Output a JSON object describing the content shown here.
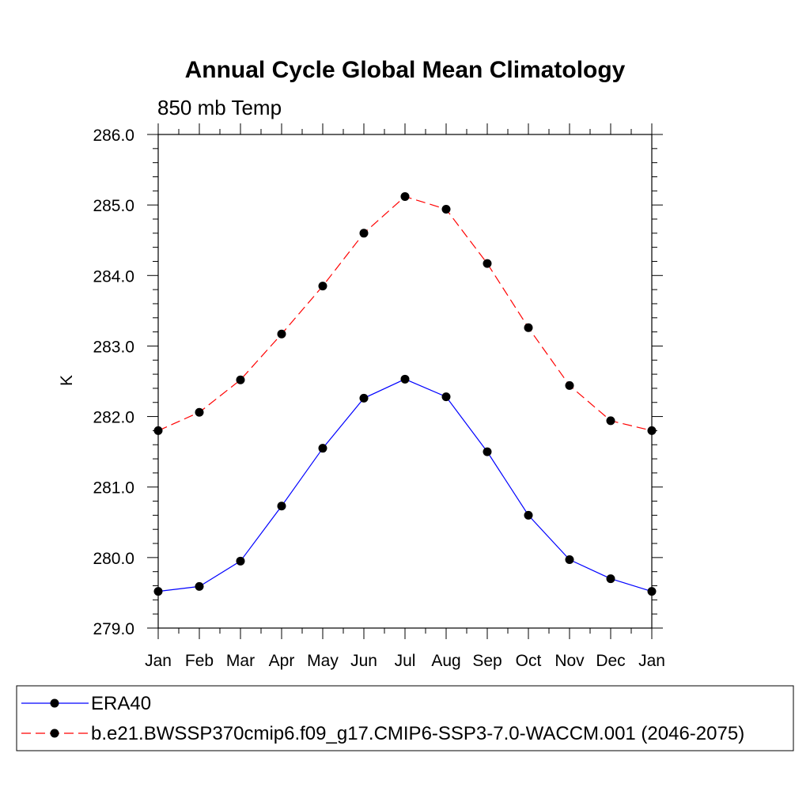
{
  "chart_data": {
    "type": "line",
    "title": "Annual Cycle Global Mean Climatology",
    "subtitle": "850 mb Temp",
    "xlabel": "",
    "ylabel": "K",
    "categories": [
      "Jan",
      "Feb",
      "Mar",
      "Apr",
      "May",
      "Jun",
      "Jul",
      "Aug",
      "Sep",
      "Oct",
      "Nov",
      "Dec",
      "Jan"
    ],
    "yticks": [
      "279.0",
      "280.0",
      "281.0",
      "282.0",
      "283.0",
      "284.0",
      "285.0",
      "286.0"
    ],
    "ylim": [
      279.0,
      286.0
    ],
    "grid": false,
    "legend_position": "bottom",
    "series": [
      {
        "name": "ERA40",
        "color": "#0000ff",
        "dash": "solid",
        "marker": "filled-circle",
        "values": [
          279.52,
          279.59,
          279.95,
          280.73,
          281.55,
          282.26,
          282.53,
          282.28,
          281.5,
          280.6,
          279.97,
          279.7,
          279.52
        ]
      },
      {
        "name": "b.e21.BWSSP370cmip6.f09_g17.CMIP6-SSP3-7.0-WACCM.001 (2046-2075)",
        "color": "#ff0000",
        "dash": "dashed",
        "marker": "filled-circle",
        "values": [
          281.8,
          282.06,
          282.52,
          283.17,
          283.85,
          284.6,
          285.12,
          284.94,
          284.17,
          283.26,
          282.44,
          281.94,
          281.8
        ]
      }
    ]
  }
}
